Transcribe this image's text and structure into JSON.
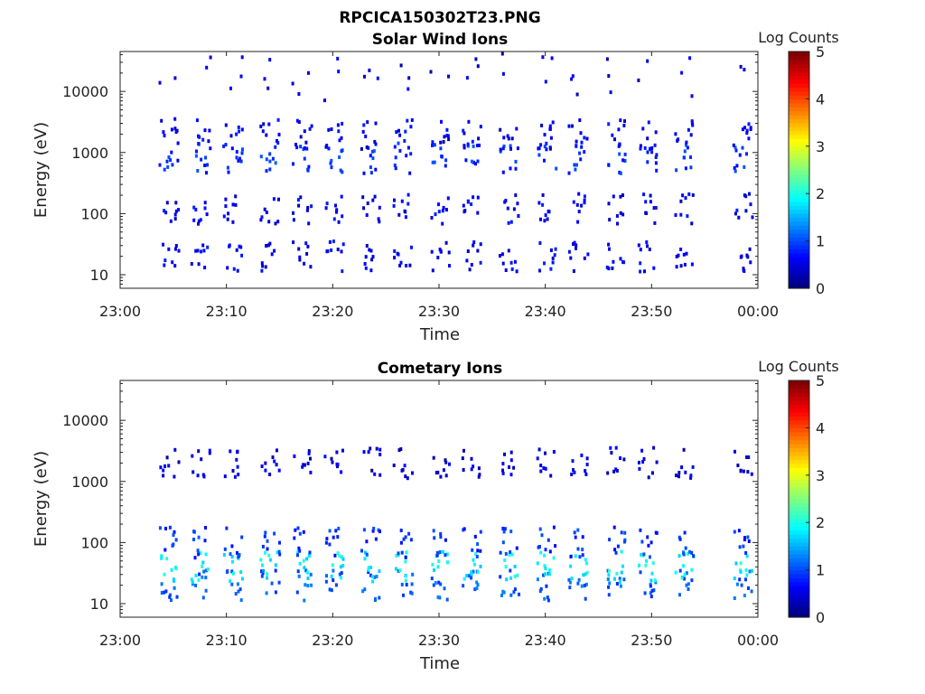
{
  "figure": {
    "title": "RPCICA150302T23.PNG"
  },
  "colors": {
    "background": "#ffffff",
    "axis": "#222222",
    "colormap": [
      "#00007f",
      "#0000ff",
      "#007fff",
      "#00ffff",
      "#7fff7f",
      "#ffff00",
      "#ff7f00",
      "#ff0000",
      "#7f0000"
    ]
  },
  "chart_data": [
    {
      "type": "heatmap",
      "title": "Solar Wind Ions",
      "xlabel": "Time",
      "ylabel": "Energy (eV)",
      "yscale": "log",
      "ylim": [
        6,
        45000
      ],
      "xlim": [
        "23:00",
        "00:00"
      ],
      "xticks": [
        "23:00",
        "23:10",
        "23:20",
        "23:30",
        "23:40",
        "23:50",
        "00:00"
      ],
      "yticks": [
        10,
        100,
        1000,
        10000
      ],
      "yticklabels": [
        "10",
        "100",
        "1000",
        "10000"
      ],
      "colorbar": {
        "label": "Log Counts",
        "range": [
          0,
          5
        ],
        "ticks": [
          "0",
          "1",
          "2",
          "3",
          "4",
          "5"
        ]
      },
      "bursts_minutes": [
        4.5,
        7.5,
        10.5,
        14,
        17,
        20,
        23.5,
        26.5,
        30,
        33,
        36.5,
        40,
        43,
        46.5,
        49.5,
        53,
        58.5
      ],
      "band_energies_eV": [
        20,
        120,
        800,
        2000,
        20000
      ],
      "band_log_counts": [
        0.3,
        0.3,
        0.6,
        0.3,
        0.2
      ]
    },
    {
      "type": "heatmap",
      "title": "Cometary Ions",
      "xlabel": "Time",
      "ylabel": "Energy (eV)",
      "yscale": "log",
      "ylim": [
        6,
        45000
      ],
      "xlim": [
        "23:00",
        "00:00"
      ],
      "xticks": [
        "23:00",
        "23:10",
        "23:20",
        "23:30",
        "23:40",
        "23:50",
        "00:00"
      ],
      "yticks": [
        10,
        100,
        1000,
        10000
      ],
      "yticklabels": [
        "10",
        "100",
        "1000",
        "10000"
      ],
      "colorbar": {
        "label": "Log Counts",
        "range": [
          0,
          5
        ],
        "ticks": [
          "0",
          "1",
          "2",
          "3",
          "4",
          "5"
        ]
      },
      "bursts_minutes": [
        4.5,
        7.5,
        10.5,
        14,
        17,
        20,
        23.5,
        26.5,
        30,
        33,
        36.5,
        40,
        43,
        46.5,
        49.5,
        53,
        58.5
      ],
      "band_energies_eV": [
        20,
        40,
        100,
        2000
      ],
      "band_log_counts": [
        0.8,
        1.6,
        0.6,
        0.2
      ]
    }
  ]
}
